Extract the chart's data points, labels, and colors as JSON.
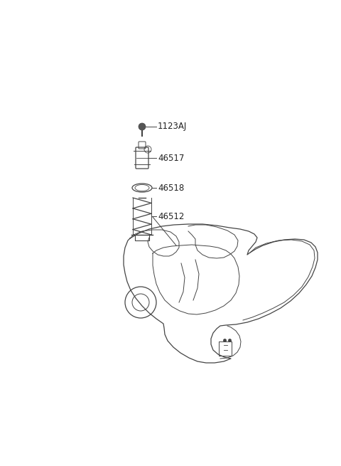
{
  "background_color": "#ffffff",
  "line_color": "#444444",
  "text_color": "#222222",
  "label_fontsize": 8.5,
  "labels": [
    "1123AJ",
    "46517",
    "46518",
    "46512"
  ],
  "fig_width": 4.8,
  "fig_height": 6.55,
  "dpi": 100
}
